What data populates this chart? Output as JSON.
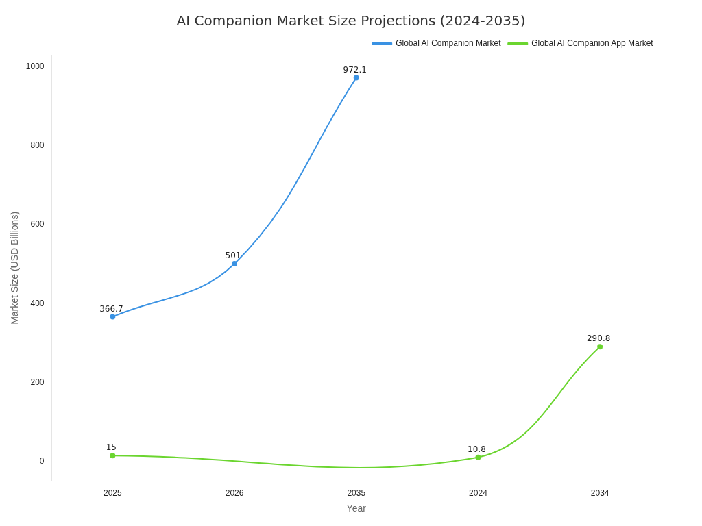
{
  "chart_data": {
    "type": "line",
    "title": "AI Companion Market Size Projections (2024-2035)",
    "xlabel": "Year",
    "ylabel": "Market Size (USD Billions)",
    "categories": [
      "2025",
      "2026",
      "2035",
      "2024",
      "2034"
    ],
    "series": [
      {
        "name": "Global AI Companion Market",
        "color": "#3a92e3",
        "values": [
          366.7,
          501,
          972.1,
          null,
          null
        ]
      },
      {
        "name": "Global AI Companion App Market",
        "color": "#6bd52f",
        "values": [
          15,
          null,
          null,
          10.8,
          290.8
        ]
      }
    ],
    "ylim": [
      -50,
      1030
    ],
    "yticks": [
      0,
      200,
      400,
      600,
      800,
      1000
    ],
    "grid": false,
    "legend": "top right",
    "marker": "circle",
    "line_style": "solid",
    "data_labels": true
  }
}
